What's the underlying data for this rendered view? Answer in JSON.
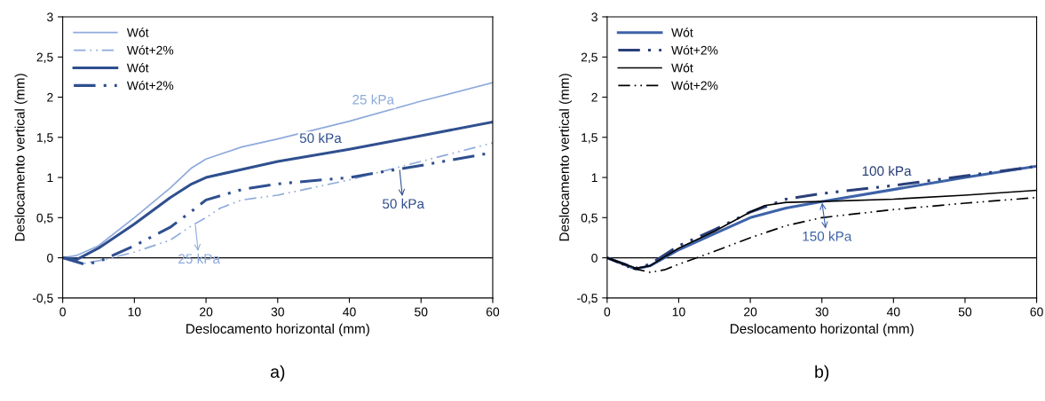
{
  "chart_data": [
    {
      "type": "line",
      "title": "a)",
      "xlabel": "Deslocamento horizontal (mm)",
      "ylabel": "Deslocamento vertical (mm)",
      "xlim": [
        0,
        60
      ],
      "ylim": [
        -0.5,
        3
      ],
      "xticks": [
        0,
        10,
        20,
        30,
        40,
        50,
        60
      ],
      "yticks": [
        {
          "value": -0.5,
          "label": "-0,5"
        },
        0,
        {
          "value": 0.5,
          "label": "0,5"
        },
        1,
        {
          "value": 1.5,
          "label": "1,5"
        },
        2,
        {
          "value": 2.5,
          "label": "2,5"
        },
        3
      ],
      "legend": "top left",
      "grid": false,
      "marker": "none",
      "ref_lines": [
        {
          "axis": "y",
          "value": 0,
          "color": "#000000"
        }
      ],
      "annotations": [
        {
          "text": "25 kPa",
          "x": 44,
          "y": 1.8
        },
        {
          "text": "50 kPa",
          "x": 37,
          "y": 1.305
        },
        {
          "text": "50 kPa",
          "x": 47,
          "y": 1.105
        },
        {
          "text": "25 kPa",
          "x": 18.5,
          "y": 0.42
        }
      ],
      "series": [
        {
          "name": "Wót",
          "color": "#8eaadb",
          "line_style": "solid",
          "x": [
            0,
            2,
            5,
            10,
            15,
            18,
            20,
            25,
            30,
            40,
            50,
            60
          ],
          "values": [
            0,
            0.03,
            0.15,
            0.5,
            0.87,
            1.12,
            1.23,
            1.38,
            1.48,
            1.7,
            1.95,
            2.18
          ]
        },
        {
          "name": "Wót+2%",
          "color": "#8eaadb",
          "line_style": "dashed",
          "x": [
            0,
            3,
            6,
            10,
            15,
            18,
            20,
            22,
            25,
            30,
            40,
            50,
            60
          ],
          "values": [
            0,
            -0.07,
            -0.02,
            0.07,
            0.22,
            0.4,
            0.5,
            0.62,
            0.72,
            0.78,
            0.97,
            1.2,
            1.43
          ]
        },
        {
          "name": "Wót",
          "color": "#2f4f8f",
          "line_style": "solid",
          "x": [
            0,
            2,
            5,
            10,
            15,
            18,
            20,
            25,
            30,
            40,
            50,
            60
          ],
          "values": [
            0,
            -0.02,
            0.12,
            0.42,
            0.75,
            0.92,
            1.0,
            1.1,
            1.2,
            1.35,
            1.52,
            1.69
          ]
        },
        {
          "name": "Wót+2%",
          "color": "#2f4f8f",
          "line_style": "dashed",
          "x": [
            0,
            3,
            5,
            10,
            15,
            18,
            20,
            25,
            30,
            40,
            50,
            60
          ],
          "values": [
            0,
            -0.08,
            -0.05,
            0.15,
            0.38,
            0.58,
            0.72,
            0.85,
            0.92,
            1.0,
            1.15,
            1.31
          ]
        }
      ]
    },
    {
      "type": "line",
      "title": "b)",
      "xlabel": "Deslocamento horizontal (mm)",
      "ylabel": "Deslocamento vertical (mm)",
      "xlim": [
        0,
        60
      ],
      "ylim": [
        -0.5,
        3
      ],
      "xticks": [
        0,
        10,
        20,
        30,
        40,
        50,
        60
      ],
      "yticks": [
        {
          "value": -0.5,
          "label": "-0,5"
        },
        0,
        {
          "value": 0.5,
          "label": "0,5"
        },
        1,
        {
          "value": 1.5,
          "label": "1,5"
        },
        2,
        {
          "value": 2.5,
          "label": "2,5"
        },
        3
      ],
      "legend": "top left",
      "grid": false,
      "marker": "none",
      "ref_lines": [
        {
          "axis": "y",
          "value": 0,
          "color": "#000000"
        }
      ],
      "annotations": [
        {
          "text": "100 kPa",
          "x": 38,
          "y": 0.88
        },
        {
          "text": "150 kPa",
          "x": 30,
          "y": 0.7
        }
      ],
      "series": [
        {
          "name": "Wót",
          "color": "#3d63a8",
          "line_style": "solid",
          "x": [
            0,
            2,
            4,
            6,
            10,
            15,
            20,
            25,
            30,
            40,
            50,
            60
          ],
          "values": [
            0,
            -0.07,
            -0.14,
            -0.1,
            0.1,
            0.3,
            0.5,
            0.62,
            0.7,
            0.85,
            1.0,
            1.14
          ]
        },
        {
          "name": "Wót+2%",
          "color": "#2a3f7a",
          "line_style": "dashed",
          "x": [
            0,
            4,
            6,
            10,
            15,
            20,
            25,
            30,
            40,
            50,
            60
          ],
          "values": [
            0,
            -0.13,
            -0.08,
            0.15,
            0.35,
            0.57,
            0.73,
            0.8,
            0.9,
            1.02,
            1.14
          ]
        },
        {
          "name": "Wót",
          "color": "#000000",
          "line_style": "solid",
          "x": [
            0,
            4,
            6,
            10,
            15,
            20,
            22,
            25,
            30,
            40,
            50,
            60
          ],
          "values": [
            0,
            -0.13,
            -0.1,
            0.12,
            0.33,
            0.57,
            0.65,
            0.69,
            0.7,
            0.73,
            0.78,
            0.84
          ]
        },
        {
          "name": "Wót+2%",
          "color": "#000000",
          "line_style": "dashed",
          "x": [
            0,
            3,
            6,
            8,
            10,
            15,
            20,
            25,
            30,
            40,
            50,
            60
          ],
          "values": [
            0,
            -0.12,
            -0.18,
            -0.15,
            -0.08,
            0.08,
            0.25,
            0.4,
            0.5,
            0.6,
            0.68,
            0.75
          ]
        }
      ]
    }
  ]
}
